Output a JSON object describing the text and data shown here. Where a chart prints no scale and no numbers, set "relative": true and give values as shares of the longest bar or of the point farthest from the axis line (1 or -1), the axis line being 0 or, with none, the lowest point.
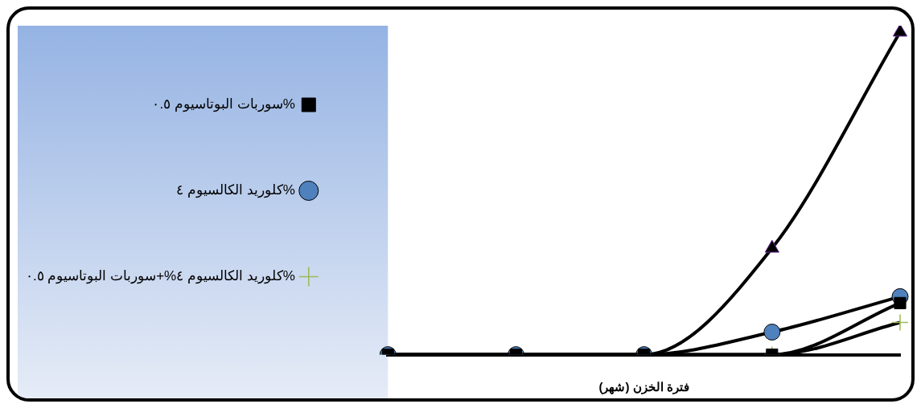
{
  "chart_data": {
    "type": "line",
    "xlabel": "فترة الخزن (شهر)",
    "categories": [
      null,
      null,
      null,
      null,
      null
    ],
    "relative": true,
    "legend": "top left",
    "grid": false,
    "series": [
      {
        "name": "كلوريد الكالسيوم ٤%",
        "color": "#4f81bd",
        "marker": "circle",
        "values": [
          0,
          0,
          0,
          0.07,
          0.18
        ]
      },
      {
        "name": "سوربات البوتاسيوم ٠.٥%",
        "color": "#000000",
        "marker": "square",
        "values": [
          0,
          0,
          0,
          0,
          0.16
        ]
      },
      {
        "name": "كلوريد الكالسيوم ٤%+سوربات البوتاسيوم ٠.٥%",
        "color": "#9bbb59",
        "marker": "cross",
        "values": [
          0,
          0,
          0,
          0,
          0.1
        ]
      },
      {
        "color": "#000000",
        "marker": "triangle",
        "values": [
          0,
          0,
          0,
          0.33,
          1
        ]
      }
    ]
  }
}
